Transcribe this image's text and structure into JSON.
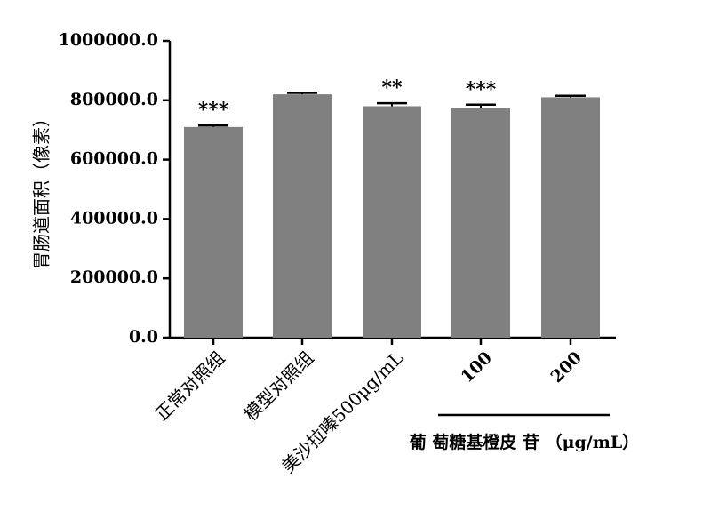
{
  "chart_data": {
    "type": "bar",
    "y_label": "胃肠道面积（像素）",
    "categories": [
      "正常对照组",
      "模型对照组",
      "美沙拉嗪500μg/mL",
      "100",
      "200"
    ],
    "values": [
      710000,
      820000,
      780000,
      775000,
      810000
    ],
    "errors": [
      5000,
      5000,
      10000,
      10000,
      5000
    ],
    "significance": [
      "***",
      null,
      "**",
      "***",
      null
    ],
    "color": "#808080",
    "group_label": "葡 萄糖基橙皮 苷 （μg/mL）",
    "ylim": [
      0,
      1000000
    ],
    "yticks": [
      {
        "value": 0,
        "label": "0.0"
      },
      {
        "value": 200000,
        "label": "200000.0"
      },
      {
        "value": 400000,
        "label": "400000.0"
      },
      {
        "value": 600000,
        "label": "600000.0"
      },
      {
        "value": 800000,
        "label": "800000.0"
      },
      {
        "value": 1000000,
        "label": "1000000.0"
      }
    ]
  }
}
